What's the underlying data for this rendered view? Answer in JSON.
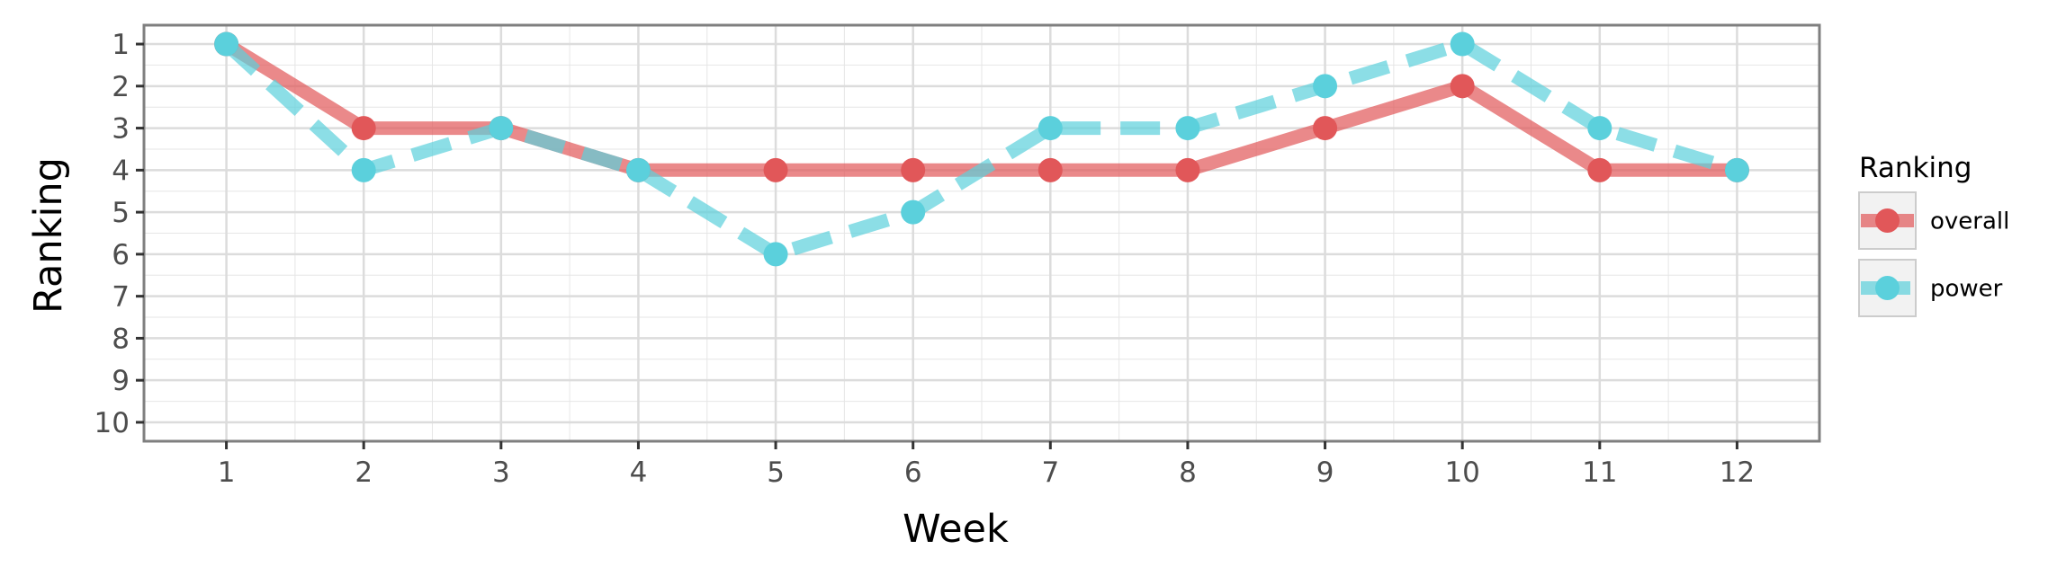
{
  "chart_data": {
    "type": "line",
    "xlabel": "Week",
    "ylabel": "Ranking",
    "x": [
      1,
      2,
      3,
      4,
      5,
      6,
      7,
      8,
      9,
      10,
      11,
      12
    ],
    "x_ticks": [
      1,
      2,
      3,
      4,
      5,
      6,
      7,
      8,
      9,
      10,
      11,
      12
    ],
    "y_ticks": [
      1,
      2,
      3,
      4,
      5,
      6,
      7,
      8,
      9,
      10
    ],
    "xlim": [
      0.4,
      12.6
    ],
    "ylim": [
      10.45,
      0.55
    ],
    "y_reversed": true,
    "grid": true,
    "legend": {
      "title": "Ranking",
      "placement": "right"
    },
    "series": [
      {
        "name": "overall",
        "values": [
          1,
          3,
          3,
          4,
          4,
          4,
          4,
          4,
          3,
          2,
          4,
          4
        ],
        "color": "#e15759",
        "line_style": "solid"
      },
      {
        "name": "power",
        "values": [
          1,
          4,
          3,
          4,
          6,
          5,
          3,
          3,
          2,
          1,
          3,
          4
        ],
        "color": "#5bd0dc",
        "line_style": "dashed"
      }
    ]
  }
}
